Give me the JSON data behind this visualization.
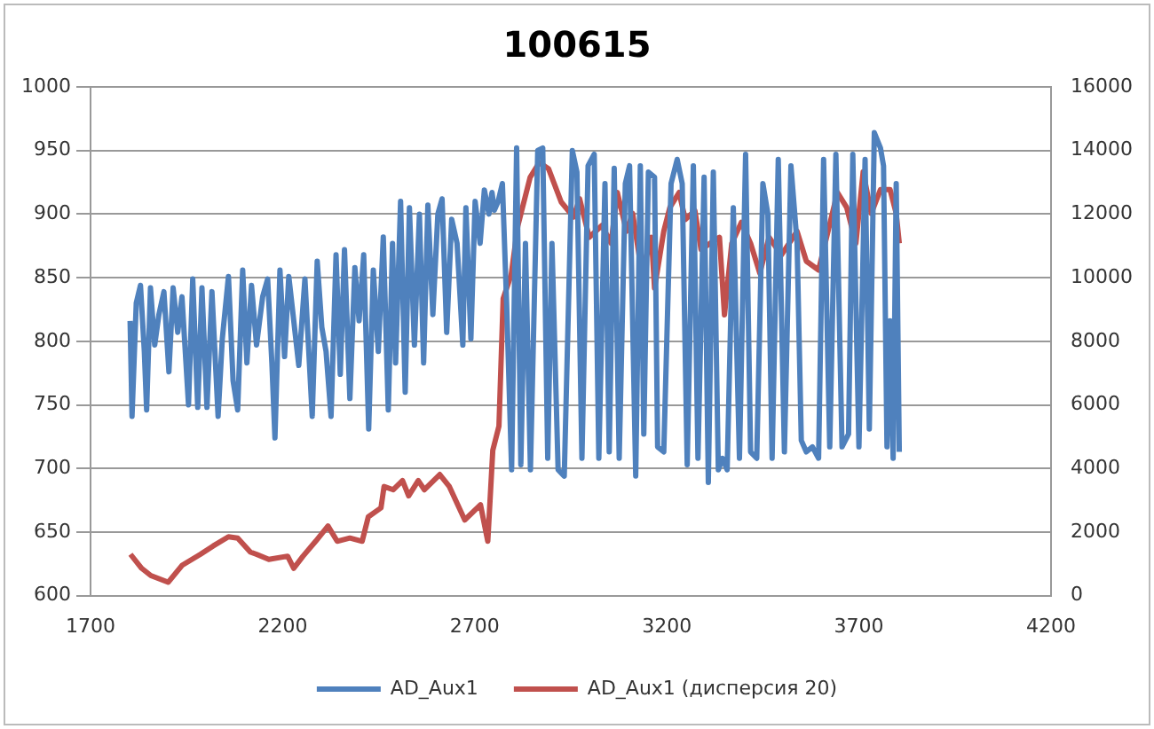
{
  "chart_data": {
    "type": "line",
    "title": "100615",
    "xlim": [
      1700,
      4200
    ],
    "xticks": [
      1700,
      2200,
      2700,
      3200,
      3700,
      4200
    ],
    "ylim": [
      600,
      1000
    ],
    "yticks": [
      600,
      650,
      700,
      750,
      800,
      850,
      900,
      950,
      1000
    ],
    "y2lim": [
      0,
      16000
    ],
    "y2ticks": [
      0,
      2000,
      4000,
      6000,
      8000,
      10000,
      12000,
      14000,
      16000
    ],
    "grid": "y",
    "legend": "bottom",
    "marker": "none",
    "line_style": "solid",
    "series": [
      {
        "name": "AD_Aux1",
        "color": "#4f81bd",
        "x": [
          1803,
          1808,
          1819,
          1830,
          1840,
          1846,
          1856,
          1867,
          1878,
          1891,
          1904,
          1915,
          1927,
          1938,
          1955,
          1966,
          1979,
          1990,
          2003,
          2016,
          2032,
          2043,
          2059,
          2071,
          2083,
          2096,
          2107,
          2119,
          2132,
          2148,
          2161,
          2172,
          2180,
          2193,
          2205,
          2216,
          2229,
          2242,
          2258,
          2277,
          2290,
          2302,
          2313,
          2326,
          2339,
          2350,
          2361,
          2375,
          2388,
          2399,
          2411,
          2424,
          2436,
          2449,
          2462,
          2475,
          2486,
          2494,
          2507,
          2519,
          2530,
          2543,
          2556,
          2567,
          2578,
          2591,
          2604,
          2615,
          2627,
          2640,
          2654,
          2669,
          2677,
          2690,
          2701,
          2714,
          2725,
          2737,
          2745,
          2751,
          2761,
          2772,
          2783,
          2796,
          2809,
          2820,
          2832,
          2845,
          2864,
          2877,
          2890,
          2901,
          2917,
          2933,
          2954,
          2966,
          2979,
          2995,
          3011,
          3023,
          3039,
          3050,
          3063,
          3076,
          3092,
          3103,
          3119,
          3131,
          3140,
          3152,
          3168,
          3176,
          3192,
          3211,
          3227,
          3240,
          3253,
          3269,
          3281,
          3297,
          3308,
          3321,
          3334,
          3345,
          3357,
          3373,
          3389,
          3405,
          3418,
          3434,
          3450,
          3463,
          3474,
          3490,
          3506,
          3523,
          3539,
          3550,
          3563,
          3579,
          3595,
          3608,
          3624,
          3640,
          3656,
          3673,
          3684,
          3700,
          3716,
          3727,
          3740,
          3756,
          3764,
          3773,
          3781,
          3789,
          3797,
          3805
        ],
        "values": [
          816,
          741,
          830,
          844,
          792,
          746,
          842,
          797,
          821,
          839,
          776,
          842,
          807,
          835,
          750,
          849,
          748,
          842,
          748,
          839,
          741,
          802,
          851,
          769,
          746,
          856,
          783,
          844,
          797,
          835,
          849,
          783,
          724,
          856,
          788,
          851,
          816,
          781,
          849,
          741,
          863,
          811,
          792,
          741,
          868,
          774,
          872,
          755,
          858,
          816,
          868,
          731,
          856,
          792,
          882,
          746,
          877,
          783,
          910,
          760,
          905,
          797,
          900,
          783,
          907,
          821,
          900,
          912,
          807,
          896,
          877,
          797,
          905,
          802,
          910,
          877,
          919,
          900,
          917,
          903,
          910,
          924,
          830,
          699,
          952,
          703,
          877,
          699,
          950,
          952,
          708,
          877,
          699,
          694,
          950,
          933,
          708,
          938,
          947,
          708,
          924,
          713,
          936,
          708,
          924,
          938,
          694,
          938,
          727,
          933,
          929,
          717,
          713,
          924,
          943,
          924,
          703,
          938,
          708,
          929,
          689,
          933,
          699,
          708,
          699,
          905,
          708,
          947,
          713,
          708,
          924,
          900,
          708,
          943,
          713,
          938,
          877,
          722,
          713,
          717,
          708,
          943,
          717,
          947,
          717,
          727,
          947,
          717,
          943,
          731,
          964,
          952,
          938,
          717,
          816,
          708,
          924,
          713
        ]
      },
      {
        "name": "AD_Aux1 (дисперсия 20)",
        "color": "#c0504d",
        "axis": "y2",
        "x": [
          1804,
          1833,
          1857,
          1902,
          1938,
          1986,
          2019,
          2059,
          2083,
          2116,
          2132,
          2164,
          2213,
          2229,
          2253,
          2286,
          2318,
          2342,
          2375,
          2407,
          2423,
          2456,
          2464,
          2488,
          2512,
          2528,
          2553,
          2569,
          2609,
          2634,
          2674,
          2715,
          2734,
          2747,
          2763,
          2774,
          2795,
          2812,
          2844,
          2868,
          2892,
          2925,
          2957,
          2973,
          2998,
          3031,
          3055,
          3071,
          3095,
          3111,
          3135,
          3160,
          3168,
          3192,
          3208,
          3232,
          3248,
          3273,
          3289,
          3313,
          3337,
          3350,
          3369,
          3394,
          3418,
          3442,
          3466,
          3498,
          3539,
          3563,
          3595,
          3627,
          3644,
          3668,
          3692,
          3711,
          3732,
          3756,
          3781,
          3797,
          3805
        ],
        "values": [
          1300,
          860,
          630,
          420,
          950,
          1300,
          1560,
          1850,
          1810,
          1370,
          1300,
          1140,
          1240,
          860,
          1240,
          1710,
          2190,
          1710,
          1810,
          1710,
          2480,
          2760,
          3430,
          3330,
          3620,
          3140,
          3620,
          3330,
          3810,
          3430,
          2380,
          2860,
          1710,
          4570,
          5330,
          9340,
          10100,
          11620,
          13150,
          13620,
          13430,
          12380,
          11910,
          12480,
          11270,
          11640,
          11080,
          12680,
          11460,
          12020,
          10140,
          11270,
          9670,
          11460,
          12210,
          12680,
          11830,
          12110,
          10890,
          11080,
          11270,
          8830,
          11080,
          11740,
          11080,
          10140,
          11270,
          10710,
          11460,
          10520,
          10240,
          11830,
          12680,
          12210,
          11080,
          13330,
          12020,
          12770,
          12770,
          12020,
          11080
        ]
      }
    ]
  }
}
